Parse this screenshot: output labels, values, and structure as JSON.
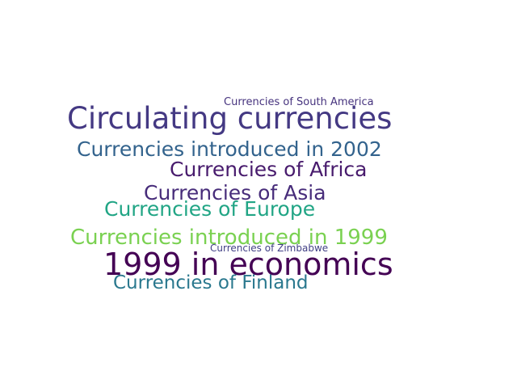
{
  "words": [
    {
      "text": "Currencies of South America",
      "color": "#46337e"
    },
    {
      "text": "Circulating currencies",
      "color": "#443983"
    },
    {
      "text": "Currencies introduced in 2002",
      "color": "#33638d"
    },
    {
      "text": "Currencies of Africa",
      "color": "#481b6d"
    },
    {
      "text": "Currencies of Asia",
      "color": "#472c7a"
    },
    {
      "text": "Currencies of Europe",
      "color": "#21a585"
    },
    {
      "text": "Currencies introduced in 1999",
      "color": "#7ad151"
    },
    {
      "text": "Currencies of Zimbabwe",
      "color": "#424086"
    },
    {
      "text": "1999 in economics",
      "color": "#440154"
    },
    {
      "text": "Currencies of Finland",
      "color": "#2a788e"
    }
  ]
}
